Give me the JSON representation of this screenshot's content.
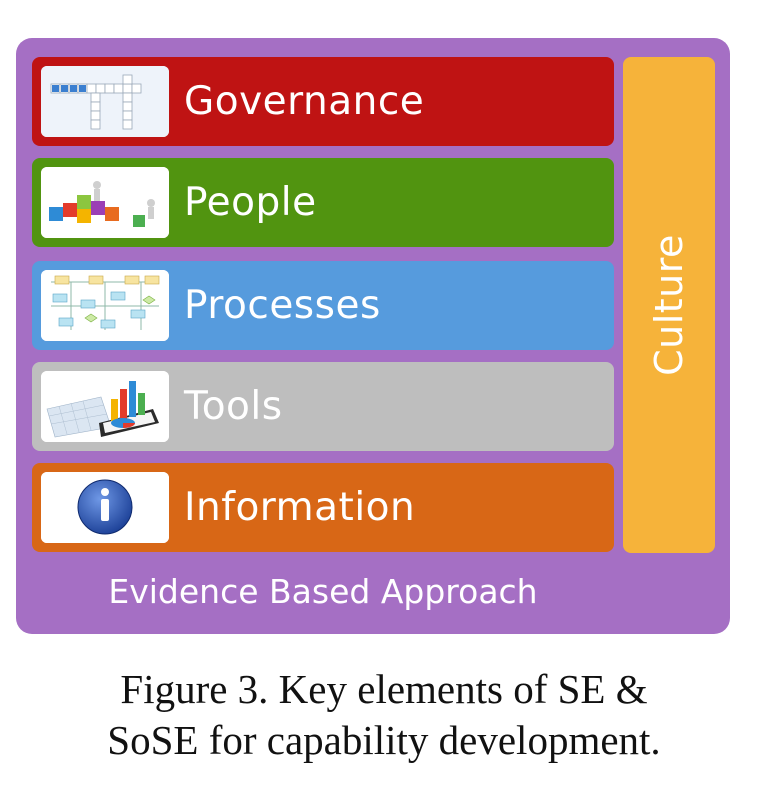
{
  "diagram": {
    "colors": {
      "frame": "#a56fc4",
      "governance": "#bf1313",
      "people": "#519410",
      "processes": "#569bdd",
      "tools": "#bebebe",
      "information": "#d86716",
      "culture": "#f6b33a"
    },
    "layers": [
      {
        "label": "Governance",
        "icon": "crossword-icon"
      },
      {
        "label": "People",
        "icon": "puzzle-people-icon"
      },
      {
        "label": "Processes",
        "icon": "flowchart-icon"
      },
      {
        "label": "Tools",
        "icon": "chart-tablet-icon"
      },
      {
        "label": "Information",
        "icon": "info-icon"
      }
    ],
    "culture_label": "Culture",
    "foundation_label": "Evidence Based Approach"
  },
  "caption": {
    "line1": "Figure 3. Key elements of SE &",
    "line2": "SoSE for capability development."
  }
}
